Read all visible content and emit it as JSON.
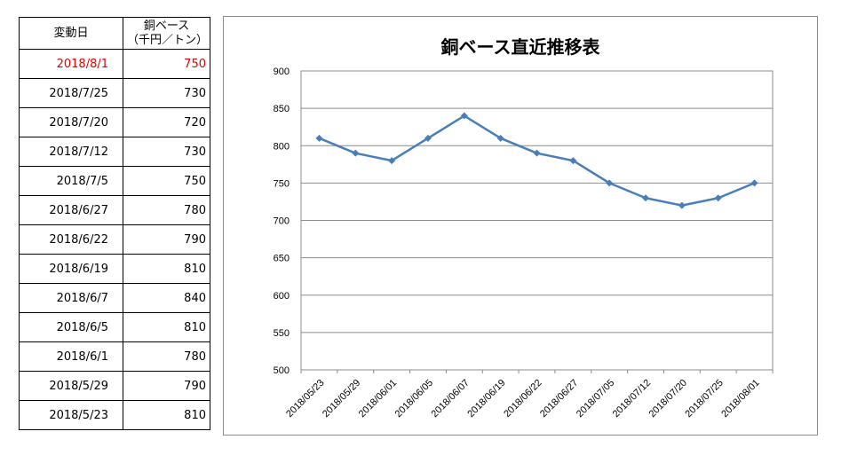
{
  "table": {
    "header_date": "変動日",
    "header_price_line1": "銅ベース",
    "header_price_line2": "（千円／トン）",
    "rows": [
      {
        "date": "2018/8/1",
        "price": "750"
      },
      {
        "date": "2018/7/25",
        "price": "730"
      },
      {
        "date": "2018/7/20",
        "price": "720"
      },
      {
        "date": "2018/7/12",
        "price": "730"
      },
      {
        "date": "2018/7/5",
        "price": "750"
      },
      {
        "date": "2018/6/27",
        "price": "780"
      },
      {
        "date": "2018/6/22",
        "price": "790"
      },
      {
        "date": "2018/6/19",
        "price": "810"
      },
      {
        "date": "2018/6/7",
        "price": "840"
      },
      {
        "date": "2018/6/5",
        "price": "810"
      },
      {
        "date": "2018/6/1",
        "price": "780"
      },
      {
        "date": "2018/5/29",
        "price": "790"
      },
      {
        "date": "2018/5/23",
        "price": "810"
      }
    ],
    "highlight_color": "#e00000"
  },
  "chart_data": {
    "type": "line",
    "title": "銅ベース直近推移表",
    "xlabel": "",
    "ylabel": "",
    "ylim": [
      500,
      900
    ],
    "y_ticks": [
      500,
      550,
      600,
      650,
      700,
      750,
      800,
      850,
      900
    ],
    "grid": true,
    "categories": [
      "2018/05/23",
      "2018/05/29",
      "2018/06/01",
      "2018/06/05",
      "2018/06/07",
      "2018/06/19",
      "2018/06/22",
      "2018/06/27",
      "2018/07/05",
      "2018/07/12",
      "2018/07/20",
      "2018/07/25",
      "2018/08/01"
    ],
    "series": [
      {
        "values": [
          810,
          790,
          780,
          810,
          840,
          810,
          790,
          780,
          750,
          730,
          720,
          730,
          750
        ],
        "color": "#4a7ebb",
        "marker": "diamond"
      }
    ]
  }
}
